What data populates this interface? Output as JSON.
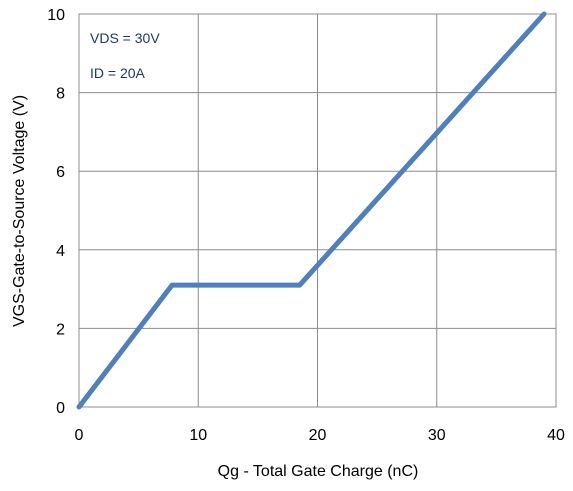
{
  "chart_data": {
    "type": "line",
    "title": "",
    "xlabel": "Qg - Total Gate Charge (nC)",
    "ylabel": "VGS-Gate-to-Source Voltage (V)",
    "xlim": [
      0,
      40
    ],
    "ylim": [
      0,
      10
    ],
    "xticks": [
      "0",
      "10",
      "20",
      "30",
      "40"
    ],
    "yticks": [
      "0",
      "2",
      "4",
      "6",
      "8",
      "10"
    ],
    "grid": true,
    "annotations": [
      "VDS = 30V",
      "ID = 20A"
    ],
    "series": [
      {
        "x": [
          0,
          7.8,
          18.5,
          39
        ],
        "y": [
          0,
          3.1,
          3.1,
          10
        ]
      }
    ],
    "colors": {
      "line": "#4f7fbd",
      "grid": "#8c8c8c",
      "annotation": "#1f3864"
    }
  }
}
